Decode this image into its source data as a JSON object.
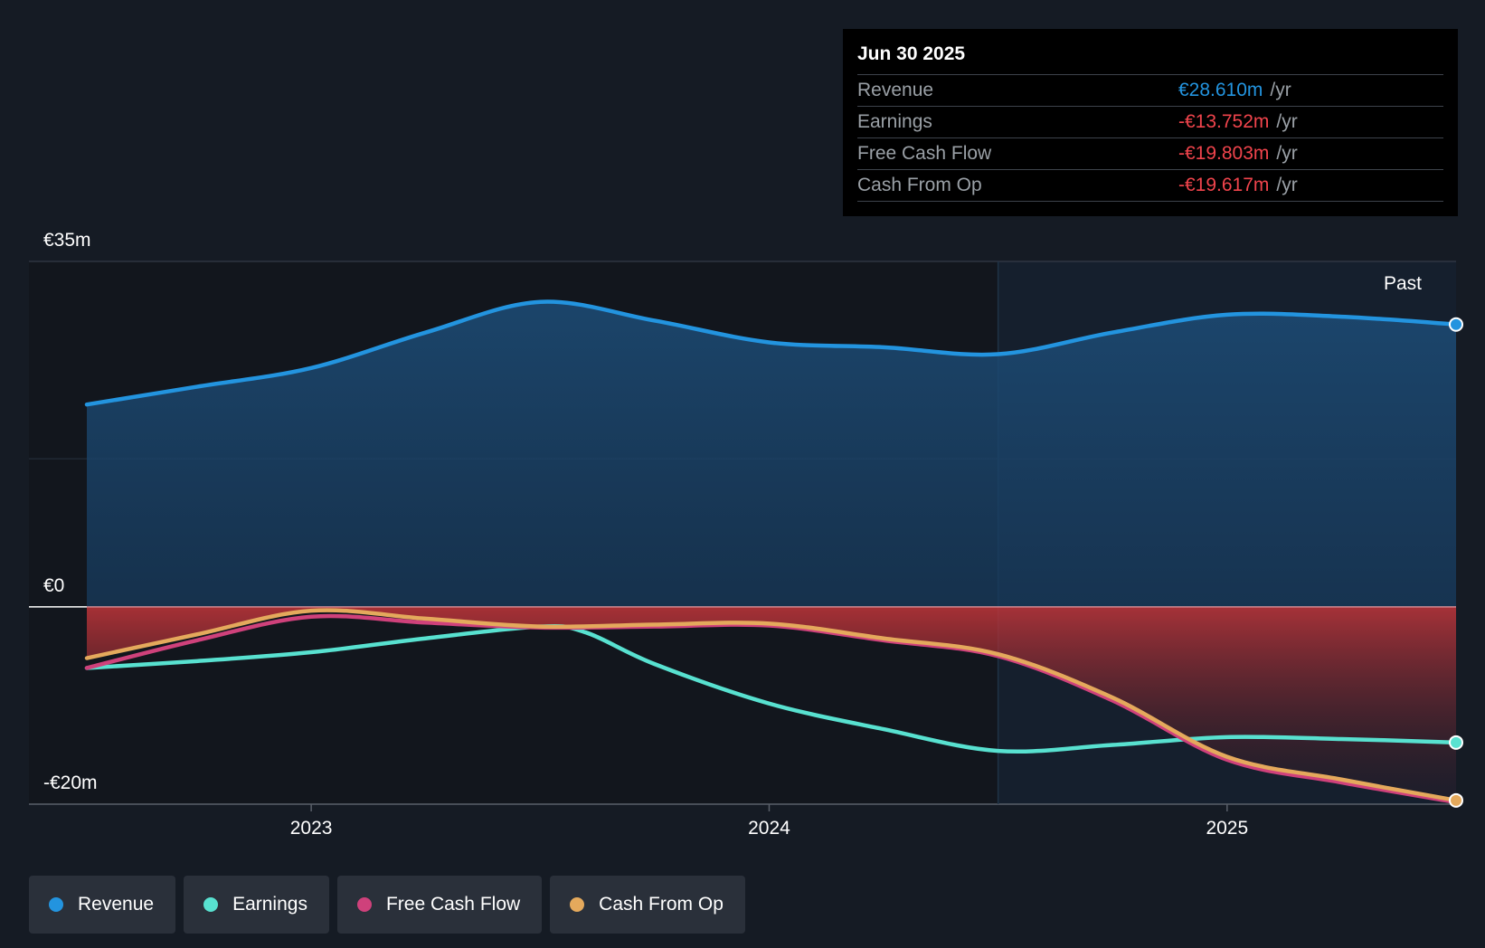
{
  "chart_data": {
    "type": "area",
    "title": "",
    "y_axis": {
      "top_label": "€35m",
      "zero_label": "€0",
      "bottom_label": "-€20m",
      "ylim": [
        -20,
        35
      ]
    },
    "x_axis": {
      "ticks": [
        "2023",
        "2024",
        "2025"
      ],
      "xlim": [
        2022.51,
        2025.5
      ]
    },
    "past_label": "Past",
    "series": [
      {
        "name": "Revenue",
        "color": "#2394df",
        "x": [
          2022.51,
          2022.75,
          2023.0,
          2023.25,
          2023.5,
          2023.75,
          2024.0,
          2024.25,
          2024.5,
          2024.75,
          2025.0,
          2025.25,
          2025.5
        ],
        "values": [
          20.5,
          22.3,
          24.2,
          27.8,
          30.9,
          29.0,
          26.8,
          26.3,
          25.6,
          27.8,
          29.6,
          29.4,
          28.61
        ]
      },
      {
        "name": "Earnings",
        "color": "#58e1d0",
        "x": [
          2022.51,
          2022.75,
          2023.0,
          2023.25,
          2023.5,
          2023.6,
          2023.75,
          2024.0,
          2024.25,
          2024.5,
          2024.75,
          2025.0,
          2025.25,
          2025.5
        ],
        "values": [
          -6.2,
          -5.5,
          -4.6,
          -3.2,
          -2.0,
          -2.6,
          -5.8,
          -9.8,
          -12.4,
          -14.6,
          -14.0,
          -13.2,
          -13.4,
          -13.752
        ]
      },
      {
        "name": "Free Cash Flow",
        "color": "#cf417b",
        "x": [
          2022.51,
          2022.75,
          2023.0,
          2023.25,
          2023.5,
          2023.75,
          2024.0,
          2024.25,
          2024.5,
          2024.75,
          2025.0,
          2025.25,
          2025.5
        ],
        "values": [
          -6.2,
          -3.4,
          -1.0,
          -1.6,
          -2.1,
          -2.0,
          -1.9,
          -3.4,
          -5.0,
          -9.5,
          -15.5,
          -17.8,
          -19.803
        ]
      },
      {
        "name": "Cash From Op",
        "color": "#e4a95c",
        "x": [
          2022.51,
          2022.75,
          2023.0,
          2023.25,
          2023.5,
          2023.75,
          2024.0,
          2024.25,
          2024.5,
          2024.75,
          2025.0,
          2025.25,
          2025.5
        ],
        "values": [
          -5.2,
          -2.8,
          -0.4,
          -1.2,
          -2.0,
          -1.8,
          -1.7,
          -3.2,
          -4.8,
          -9.2,
          -15.2,
          -17.5,
          -19.617
        ]
      }
    ]
  },
  "tooltip": {
    "date": "Jun 30 2025",
    "rows": [
      {
        "label": "Revenue",
        "value": "€28.610m",
        "unit": "/yr",
        "color": "#2394df"
      },
      {
        "label": "Earnings",
        "value": "-€13.752m",
        "unit": "/yr",
        "color": "#f0444c"
      },
      {
        "label": "Free Cash Flow",
        "value": "-€19.803m",
        "unit": "/yr",
        "color": "#f0444c"
      },
      {
        "label": "Cash From Op",
        "value": "-€19.617m",
        "unit": "/yr",
        "color": "#f0444c"
      }
    ]
  },
  "legend": [
    {
      "label": "Revenue",
      "color": "#2394df"
    },
    {
      "label": "Earnings",
      "color": "#58e1d0"
    },
    {
      "label": "Free Cash Flow",
      "color": "#cf417b"
    },
    {
      "label": "Cash From Op",
      "color": "#e4a95c"
    }
  ]
}
